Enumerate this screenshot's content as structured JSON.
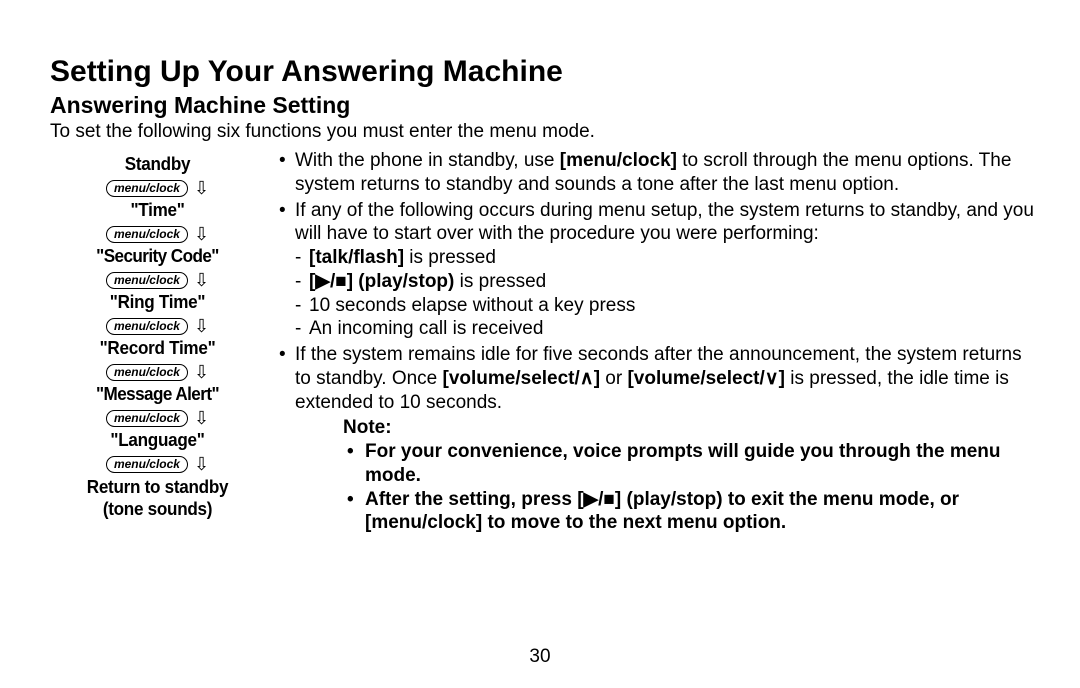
{
  "title": "Setting Up Your Answering Machine",
  "subtitle": "Answering Machine Setting",
  "intro": "To set the following six functions you must enter the menu mode.",
  "page_number": "30",
  "left": {
    "button_label": "menu/clock",
    "items": [
      "Standby",
      "\"Time\"",
      "\"Security Code\"",
      "\"Ring Time\"",
      "\"Record Time\"",
      "\"Message Alert\"",
      "\"Language\""
    ],
    "final_line1": "Return to standby",
    "final_line2": "(tone sounds)"
  },
  "right": {
    "b1_a": "With the phone in standby, use ",
    "b1_bold": "[menu/clock]",
    "b1_b": " to scroll through the menu options. The system returns to standby and sounds a tone after the last menu option.",
    "b2": "If any of the following occurs during menu setup, the system returns to standby, and you will have to start over with the procedure you were performing:",
    "d1_bold": "[talk/flash]",
    "d1_rest": " is pressed",
    "d2_bold": "[▶/■] (play/stop)",
    "d2_rest": " is pressed",
    "d3": "10 seconds elapse without a key press",
    "d4": "An incoming call is received",
    "b3_a": "If the system remains idle for five seconds after the announcement, the system returns to standby. Once ",
    "b3_bold1": "[volume/select/∧]",
    "b3_mid": " or ",
    "b3_bold2": "[volume/select/∨]",
    "b3_b": " is pressed, the idle time is extended to 10 seconds.",
    "note_label": "Note:",
    "n1": "For your convenience, voice prompts will guide you through the menu mode.",
    "n2": "After the setting, press [▶/■] (play/stop) to exit the menu mode, or [menu/clock] to move to the next menu option."
  }
}
